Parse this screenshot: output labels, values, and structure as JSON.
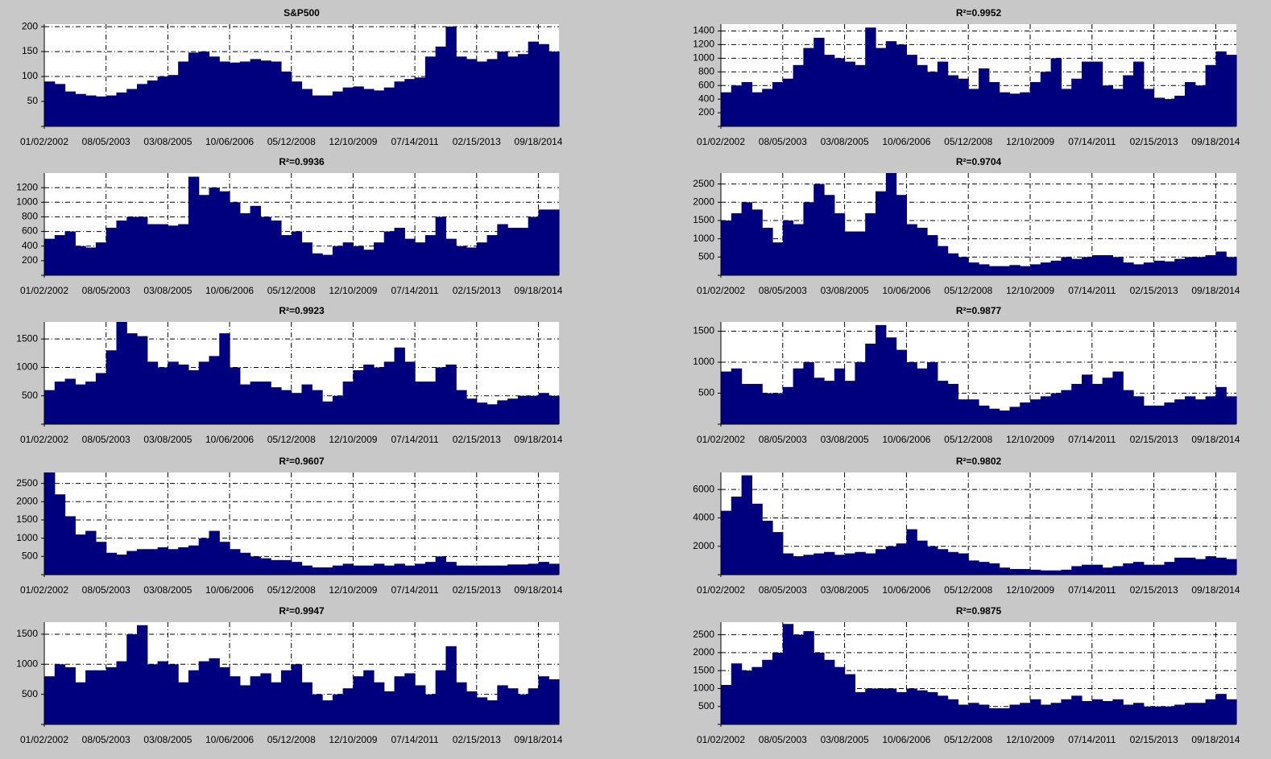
{
  "chart_data": [
    {
      "type": "bar",
      "title": "S&P500",
      "color": "#00007f",
      "grid": true,
      "values": [
        90,
        85,
        70,
        65,
        62,
        60,
        62,
        68,
        75,
        85,
        92,
        100,
        103,
        130,
        148,
        150,
        140,
        130,
        128,
        130,
        135,
        132,
        130,
        110,
        90,
        75,
        62,
        62,
        70,
        78,
        80,
        75,
        72,
        78,
        90,
        95,
        98,
        140,
        160,
        200,
        140,
        135,
        130,
        135,
        150,
        140,
        145,
        170,
        165,
        150
      ],
      "xlim": [
        0,
        50
      ],
      "xticks": [
        {
          "value": 0,
          "label": "01/02/2002"
        },
        {
          "value": 6,
          "label": "08/05/2003"
        },
        {
          "value": 12,
          "label": "03/08/2005"
        },
        {
          "value": 18,
          "label": "10/06/2006"
        },
        {
          "value": 24,
          "label": "05/12/2008"
        },
        {
          "value": 30,
          "label": "12/10/2009"
        },
        {
          "value": 36,
          "label": "07/14/2011"
        },
        {
          "value": 42,
          "label": "02/15/2013"
        },
        {
          "value": 48,
          "label": "09/18/2014"
        }
      ],
      "ylim": [
        0,
        205
      ],
      "yticks": [
        50,
        100,
        150,
        200
      ]
    },
    {
      "type": "bar",
      "title": "R²=0.9952",
      "color": "#00007f",
      "grid": true,
      "values": [
        500,
        600,
        650,
        500,
        550,
        650,
        700,
        900,
        1150,
        1300,
        1050,
        1000,
        950,
        900,
        1450,
        1150,
        1250,
        1200,
        1050,
        900,
        800,
        950,
        750,
        700,
        550,
        850,
        650,
        500,
        480,
        500,
        650,
        800,
        1000,
        550,
        700,
        950,
        950,
        600,
        550,
        750,
        950,
        550,
        420,
        400,
        450,
        650,
        600,
        900,
        1100,
        1050
      ],
      "xlim": [
        0,
        50
      ],
      "xticks": [
        {
          "value": 0,
          "label": "01/02/2002"
        },
        {
          "value": 6,
          "label": "08/05/2003"
        },
        {
          "value": 12,
          "label": "03/08/2005"
        },
        {
          "value": 18,
          "label": "10/06/2006"
        },
        {
          "value": 24,
          "label": "05/12/2008"
        },
        {
          "value": 30,
          "label": "12/10/2009"
        },
        {
          "value": 36,
          "label": "07/14/2011"
        },
        {
          "value": 42,
          "label": "02/15/2013"
        },
        {
          "value": 48,
          "label": "09/18/2014"
        }
      ],
      "ylim": [
        0,
        1500
      ],
      "yticks": [
        200,
        400,
        600,
        800,
        1000,
        1200,
        1400
      ]
    },
    {
      "type": "bar",
      "title": "R²=0.9936",
      "color": "#00007f",
      "grid": true,
      "values": [
        500,
        550,
        600,
        400,
        380,
        450,
        650,
        750,
        800,
        800,
        700,
        700,
        680,
        700,
        1350,
        1100,
        1200,
        1150,
        1000,
        850,
        950,
        800,
        750,
        550,
        600,
        450,
        300,
        280,
        400,
        450,
        400,
        350,
        450,
        600,
        650,
        500,
        450,
        550,
        800,
        500,
        400,
        380,
        450,
        550,
        700,
        650,
        650,
        800,
        900,
        900
      ],
      "xlim": [
        0,
        50
      ],
      "xticks": [
        {
          "value": 0,
          "label": "01/02/2002"
        },
        {
          "value": 6,
          "label": "08/05/2003"
        },
        {
          "value": 12,
          "label": "03/08/2005"
        },
        {
          "value": 18,
          "label": "10/06/2006"
        },
        {
          "value": 24,
          "label": "05/12/2008"
        },
        {
          "value": 30,
          "label": "12/10/2009"
        },
        {
          "value": 36,
          "label": "07/14/2011"
        },
        {
          "value": 42,
          "label": "02/15/2013"
        },
        {
          "value": 48,
          "label": "09/18/2014"
        }
      ],
      "ylim": [
        0,
        1400
      ],
      "yticks": [
        200,
        400,
        600,
        800,
        1000,
        1200
      ]
    },
    {
      "type": "bar",
      "title": "R²=0.9704",
      "color": "#00007f",
      "grid": true,
      "values": [
        1500,
        1700,
        2000,
        1800,
        1300,
        900,
        1500,
        1400,
        2000,
        2500,
        2200,
        1700,
        1200,
        1200,
        1700,
        2300,
        2800,
        2200,
        1400,
        1300,
        1100,
        800,
        600,
        500,
        350,
        300,
        250,
        250,
        280,
        250,
        300,
        350,
        400,
        500,
        450,
        500,
        550,
        550,
        500,
        350,
        300,
        350,
        400,
        380,
        450,
        500,
        500,
        550,
        650,
        500
      ],
      "xlim": [
        0,
        50
      ],
      "xticks": [
        {
          "value": 0,
          "label": "01/02/2002"
        },
        {
          "value": 6,
          "label": "08/05/2003"
        },
        {
          "value": 12,
          "label": "03/08/2005"
        },
        {
          "value": 18,
          "label": "10/06/2006"
        },
        {
          "value": 24,
          "label": "05/12/2008"
        },
        {
          "value": 30,
          "label": "12/10/2009"
        },
        {
          "value": 36,
          "label": "07/14/2011"
        },
        {
          "value": 42,
          "label": "02/15/2013"
        },
        {
          "value": 48,
          "label": "09/18/2014"
        }
      ],
      "ylim": [
        0,
        2800
      ],
      "yticks": [
        500,
        1000,
        1500,
        2000,
        2500
      ]
    },
    {
      "type": "bar",
      "title": "R²=0.9923",
      "color": "#00007f",
      "grid": true,
      "values": [
        600,
        750,
        800,
        700,
        750,
        900,
        1300,
        1800,
        1600,
        1550,
        1100,
        1000,
        1100,
        1050,
        950,
        1100,
        1200,
        1600,
        1000,
        700,
        750,
        750,
        650,
        600,
        550,
        700,
        600,
        400,
        500,
        750,
        950,
        1050,
        1000,
        1100,
        1350,
        1100,
        750,
        750,
        1000,
        1050,
        600,
        450,
        380,
        350,
        420,
        450,
        500,
        500,
        550,
        500
      ],
      "xlim": [
        0,
        50
      ],
      "xticks": [
        {
          "value": 0,
          "label": "01/02/2002"
        },
        {
          "value": 6,
          "label": "08/05/2003"
        },
        {
          "value": 12,
          "label": "03/08/2005"
        },
        {
          "value": 18,
          "label": "10/06/2006"
        },
        {
          "value": 24,
          "label": "05/12/2008"
        },
        {
          "value": 30,
          "label": "12/10/2009"
        },
        {
          "value": 36,
          "label": "07/14/2011"
        },
        {
          "value": 42,
          "label": "02/15/2013"
        },
        {
          "value": 48,
          "label": "09/18/2014"
        }
      ],
      "ylim": [
        0,
        1800
      ],
      "yticks": [
        500,
        1000,
        1500
      ]
    },
    {
      "type": "bar",
      "title": "R²=0.9877",
      "color": "#00007f",
      "grid": true,
      "values": [
        850,
        900,
        650,
        650,
        500,
        500,
        600,
        900,
        1000,
        750,
        700,
        900,
        700,
        1000,
        1300,
        1600,
        1400,
        1200,
        1000,
        900,
        1000,
        700,
        650,
        400,
        400,
        300,
        250,
        220,
        280,
        350,
        400,
        450,
        500,
        550,
        650,
        800,
        650,
        750,
        850,
        550,
        450,
        300,
        300,
        350,
        400,
        450,
        400,
        450,
        600,
        450
      ],
      "xlim": [
        0,
        50
      ],
      "xticks": [
        {
          "value": 0,
          "label": "01/02/2002"
        },
        {
          "value": 6,
          "label": "08/05/2003"
        },
        {
          "value": 12,
          "label": "03/08/2005"
        },
        {
          "value": 18,
          "label": "10/06/2006"
        },
        {
          "value": 24,
          "label": "05/12/2008"
        },
        {
          "value": 30,
          "label": "12/10/2009"
        },
        {
          "value": 36,
          "label": "07/14/2011"
        },
        {
          "value": 42,
          "label": "02/15/2013"
        },
        {
          "value": 48,
          "label": "09/18/2014"
        }
      ],
      "ylim": [
        0,
        1650
      ],
      "yticks": [
        500,
        1000,
        1500
      ]
    },
    {
      "type": "bar",
      "title": "R²=0.9607",
      "color": "#00007f",
      "grid": true,
      "values": [
        2800,
        2200,
        1600,
        1100,
        1200,
        900,
        600,
        550,
        650,
        700,
        700,
        750,
        700,
        750,
        800,
        1000,
        1200,
        900,
        700,
        600,
        500,
        450,
        400,
        400,
        350,
        250,
        200,
        200,
        250,
        300,
        250,
        250,
        300,
        250,
        300,
        250,
        300,
        350,
        500,
        350,
        250,
        250,
        250,
        250,
        250,
        280,
        280,
        300,
        350,
        300
      ],
      "xlim": [
        0,
        50
      ],
      "xticks": [
        {
          "value": 0,
          "label": "01/02/2002"
        },
        {
          "value": 6,
          "label": "08/05/2003"
        },
        {
          "value": 12,
          "label": "03/08/2005"
        },
        {
          "value": 18,
          "label": "10/06/2006"
        },
        {
          "value": 24,
          "label": "05/12/2008"
        },
        {
          "value": 30,
          "label": "12/10/2009"
        },
        {
          "value": 36,
          "label": "07/14/2011"
        },
        {
          "value": 42,
          "label": "02/15/2013"
        },
        {
          "value": 48,
          "label": "09/18/2014"
        }
      ],
      "ylim": [
        0,
        2800
      ],
      "yticks": [
        500,
        1000,
        1500,
        2000,
        2500
      ]
    },
    {
      "type": "bar",
      "title": "R²=0.9802",
      "color": "#00007f",
      "grid": true,
      "values": [
        4500,
        5500,
        7000,
        5000,
        3800,
        3000,
        1500,
        1300,
        1400,
        1500,
        1600,
        1400,
        1500,
        1600,
        1500,
        1800,
        2000,
        2200,
        3200,
        2400,
        2000,
        1800,
        1600,
        1500,
        1000,
        900,
        800,
        500,
        400,
        400,
        350,
        300,
        300,
        350,
        600,
        700,
        700,
        500,
        600,
        800,
        900,
        700,
        700,
        900,
        1200,
        1200,
        1100,
        1300,
        1200,
        1100
      ],
      "xlim": [
        0,
        50
      ],
      "xticks": [
        {
          "value": 0,
          "label": "01/02/2002"
        },
        {
          "value": 6,
          "label": "08/05/2003"
        },
        {
          "value": 12,
          "label": "03/08/2005"
        },
        {
          "value": 18,
          "label": "10/06/2006"
        },
        {
          "value": 24,
          "label": "05/12/2008"
        },
        {
          "value": 30,
          "label": "12/10/2009"
        },
        {
          "value": 36,
          "label": "07/14/2011"
        },
        {
          "value": 42,
          "label": "02/15/2013"
        },
        {
          "value": 48,
          "label": "09/18/2014"
        }
      ],
      "ylim": [
        0,
        7200
      ],
      "yticks": [
        2000,
        4000,
        6000
      ]
    },
    {
      "type": "bar",
      "title": "R²=0.9947",
      "color": "#00007f",
      "grid": true,
      "values": [
        800,
        1000,
        950,
        700,
        900,
        900,
        950,
        1050,
        1500,
        1650,
        1000,
        1050,
        1000,
        700,
        900,
        1050,
        1100,
        950,
        800,
        650,
        800,
        850,
        700,
        900,
        1000,
        700,
        500,
        400,
        500,
        600,
        800,
        900,
        700,
        550,
        800,
        850,
        650,
        500,
        900,
        1300,
        700,
        550,
        450,
        400,
        650,
        600,
        500,
        600,
        800,
        750
      ],
      "xlim": [
        0,
        50
      ],
      "xticks": [
        {
          "value": 0,
          "label": "01/02/2002"
        },
        {
          "value": 6,
          "label": "08/05/2003"
        },
        {
          "value": 12,
          "label": "03/08/2005"
        },
        {
          "value": 18,
          "label": "10/06/2006"
        },
        {
          "value": 24,
          "label": "05/12/2008"
        },
        {
          "value": 30,
          "label": "12/10/2009"
        },
        {
          "value": 36,
          "label": "07/14/2011"
        },
        {
          "value": 42,
          "label": "02/15/2013"
        },
        {
          "value": 48,
          "label": "09/18/2014"
        }
      ],
      "ylim": [
        0,
        1700
      ],
      "yticks": [
        500,
        1000,
        1500
      ]
    },
    {
      "type": "bar",
      "title": "R²=0.9875",
      "color": "#00007f",
      "grid": true,
      "values": [
        1100,
        1700,
        1500,
        1600,
        1800,
        2000,
        2800,
        2500,
        2600,
        2000,
        1800,
        1600,
        1400,
        900,
        1000,
        1000,
        1000,
        900,
        1000,
        950,
        900,
        800,
        700,
        550,
        600,
        550,
        450,
        450,
        550,
        600,
        700,
        550,
        600,
        700,
        800,
        650,
        700,
        650,
        700,
        550,
        600,
        500,
        500,
        500,
        550,
        600,
        600,
        700,
        850,
        700
      ],
      "xlim": [
        0,
        50
      ],
      "xticks": [
        {
          "value": 0,
          "label": "01/02/2002"
        },
        {
          "value": 6,
          "label": "08/05/2003"
        },
        {
          "value": 12,
          "label": "03/08/2005"
        },
        {
          "value": 18,
          "label": "10/06/2006"
        },
        {
          "value": 24,
          "label": "05/12/2008"
        },
        {
          "value": 30,
          "label": "12/10/2009"
        },
        {
          "value": 36,
          "label": "07/14/2011"
        },
        {
          "value": 42,
          "label": "02/15/2013"
        },
        {
          "value": 48,
          "label": "09/18/2014"
        }
      ],
      "ylim": [
        0,
        2850
      ],
      "yticks": [
        500,
        1000,
        1500,
        2000,
        2500
      ]
    }
  ]
}
